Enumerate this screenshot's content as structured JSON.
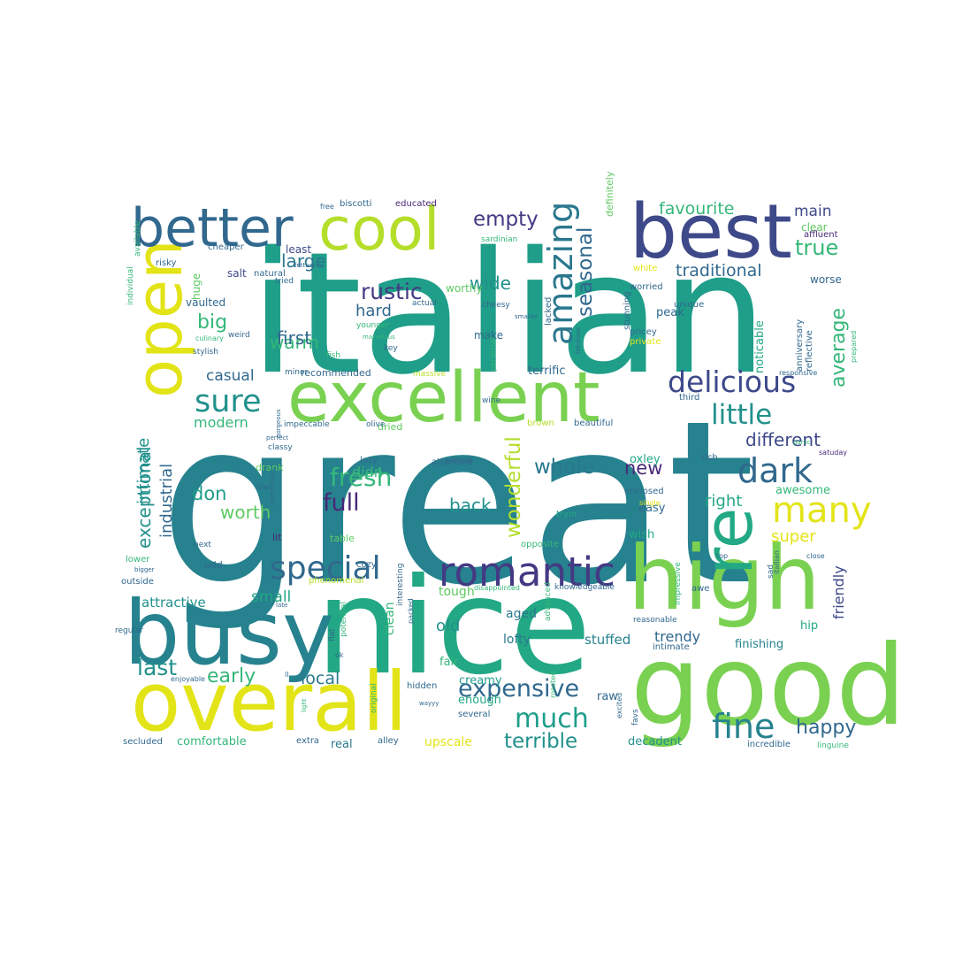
{
  "wordcloud": {
    "palette": {
      "yellow": "#e3e418",
      "lime": "#b5de2b",
      "lightgreen": "#7ad151",
      "green": "#5ec962",
      "seagreen": "#35b779",
      "teal": "#22a884",
      "teal2": "#1f9e89",
      "cyan": "#21918c",
      "blueteal": "#26828e",
      "steel": "#2a788e",
      "blue": "#31688e",
      "indigo": "#3e4989",
      "purple": "#443983",
      "dark": "#482878",
      "darkest": "#440154"
    },
    "words": [
      {
        "text": "great",
        "color": "blueteal"
      },
      {
        "text": "italian",
        "color": "teal2"
      },
      {
        "text": "nice",
        "color": "teal"
      },
      {
        "text": "good",
        "color": "lightgreen"
      },
      {
        "text": "overall",
        "color": "yellow"
      },
      {
        "text": "best",
        "color": "indigo"
      },
      {
        "text": "excellent",
        "color": "lightgreen"
      },
      {
        "text": "high",
        "color": "lightgreen"
      },
      {
        "text": "busy",
        "color": "blueteal"
      },
      {
        "text": "open",
        "color": "yellow"
      },
      {
        "text": "cool",
        "color": "lime"
      },
      {
        "text": "better",
        "color": "blue"
      },
      {
        "text": "romantic",
        "color": "purple"
      },
      {
        "text": "special",
        "color": "blue"
      },
      {
        "text": "re",
        "color": "teal"
      },
      {
        "text": "delicious",
        "color": "indigo"
      },
      {
        "text": "amazing",
        "color": "steel"
      },
      {
        "text": "expensive",
        "color": "blue"
      },
      {
        "text": "fine",
        "color": "blueteal"
      },
      {
        "text": "much",
        "color": "teal2"
      },
      {
        "text": "many",
        "color": "yellow"
      },
      {
        "text": "dark",
        "color": "blue"
      },
      {
        "text": "little",
        "color": "cyan"
      },
      {
        "text": "sure",
        "color": "cyan"
      },
      {
        "text": "fresh",
        "color": "seagreen"
      },
      {
        "text": "empty",
        "color": "purple"
      },
      {
        "text": "rustic",
        "color": "purple"
      },
      {
        "text": "full",
        "color": "dark"
      },
      {
        "text": "happy",
        "color": "blue"
      },
      {
        "text": "last",
        "color": "cyan"
      },
      {
        "text": "early",
        "color": "seagreen"
      },
      {
        "text": "terrible",
        "color": "cyan"
      },
      {
        "text": "whole",
        "color": "steel"
      },
      {
        "text": "different",
        "color": "indigo"
      },
      {
        "text": "wonderful",
        "color": "lime"
      },
      {
        "text": "seasonal",
        "color": "blue"
      },
      {
        "text": "favourite",
        "color": "seagreen"
      },
      {
        "text": "traditional",
        "color": "blue"
      },
      {
        "text": "true",
        "color": "seagreen"
      },
      {
        "text": "main",
        "color": "indigo"
      },
      {
        "text": "big",
        "color": "seagreen"
      },
      {
        "text": "worth",
        "color": "green"
      },
      {
        "text": "don",
        "color": "teal2"
      },
      {
        "text": "warm",
        "color": "seagreen"
      },
      {
        "text": "first",
        "color": "blue"
      },
      {
        "text": "large",
        "color": "steel"
      },
      {
        "text": "wide",
        "color": "cyan"
      },
      {
        "text": "hard",
        "color": "blue"
      },
      {
        "text": "new",
        "color": "dark"
      },
      {
        "text": "back",
        "color": "cyan"
      },
      {
        "text": "didn",
        "color": "seagreen"
      },
      {
        "text": "right",
        "color": "teal"
      },
      {
        "text": "super",
        "color": "yellow"
      },
      {
        "text": "average",
        "color": "seagreen"
      },
      {
        "text": "exceptional",
        "color": "cyan"
      },
      {
        "text": "industrial",
        "color": "blue"
      },
      {
        "text": "intimate",
        "color": "cyan"
      },
      {
        "text": "casual",
        "color": "blue"
      },
      {
        "text": "modern",
        "color": "seagreen"
      },
      {
        "text": "local",
        "color": "steel"
      },
      {
        "text": "old",
        "color": "cyan"
      },
      {
        "text": "small",
        "color": "teal"
      },
      {
        "text": "attractive",
        "color": "cyan"
      },
      {
        "text": "trendy",
        "color": "blue"
      },
      {
        "text": "friendly",
        "color": "indigo"
      },
      {
        "text": "stuffed",
        "color": "blueteal"
      },
      {
        "text": "lofty",
        "color": "steel"
      },
      {
        "text": "aged",
        "color": "steel"
      },
      {
        "text": "clean",
        "color": "seagreen"
      },
      {
        "text": "tough",
        "color": "green"
      },
      {
        "text": "fair",
        "color": "seagreen"
      },
      {
        "text": "upscale",
        "color": "yellow"
      },
      {
        "text": "creamy",
        "color": "teal2"
      },
      {
        "text": "enough",
        "color": "teal"
      },
      {
        "text": "raw",
        "color": "blue"
      },
      {
        "text": "comfortable",
        "color": "seagreen"
      },
      {
        "text": "real",
        "color": "steel"
      },
      {
        "text": "decadent",
        "color": "cyan"
      },
      {
        "text": "finishing",
        "color": "blueteal"
      },
      {
        "text": "hip",
        "color": "teal"
      },
      {
        "text": "awesome",
        "color": "seagreen"
      },
      {
        "text": "oxley",
        "color": "teal"
      },
      {
        "text": "easy",
        "color": "blue"
      },
      {
        "text": "wish",
        "color": "teal"
      },
      {
        "text": "noticable",
        "color": "teal"
      },
      {
        "text": "peak",
        "color": "blue"
      },
      {
        "text": "terrific",
        "color": "blue"
      },
      {
        "text": "make",
        "color": "blue"
      },
      {
        "text": "worthy",
        "color": "green"
      },
      {
        "text": "least",
        "color": "indigo"
      },
      {
        "text": "salt",
        "color": "indigo"
      },
      {
        "text": "huge",
        "color": "green"
      },
      {
        "text": "vaulted",
        "color": "blue"
      },
      {
        "text": "recommended",
        "color": "blue"
      },
      {
        "text": "dried",
        "color": "green"
      },
      {
        "text": "drank",
        "color": "green"
      },
      {
        "text": "lit",
        "color": "dark"
      },
      {
        "text": "table",
        "color": "green"
      },
      {
        "text": "odd",
        "color": "blue"
      },
      {
        "text": "definitely",
        "color": "green"
      },
      {
        "text": "clear",
        "color": "green"
      },
      {
        "text": "worse",
        "color": "blue"
      },
      {
        "text": "anniversary",
        "color": "blue"
      },
      {
        "text": "reflective",
        "color": "blue"
      },
      {
        "text": "affluent",
        "color": "dark"
      },
      {
        "text": "worried",
        "color": "blue"
      },
      {
        "text": "unique",
        "color": "blue"
      },
      {
        "text": "pricey",
        "color": "blue"
      },
      {
        "text": "private",
        "color": "yellow"
      },
      {
        "text": "white",
        "color": "yellow"
      },
      {
        "text": "stunning",
        "color": "blue"
      },
      {
        "text": "lacked",
        "color": "blue"
      },
      {
        "text": "third",
        "color": "blue"
      },
      {
        "text": "brown",
        "color": "lime"
      },
      {
        "text": "beautiful",
        "color": "blue"
      },
      {
        "text": "attentive",
        "color": "blue"
      },
      {
        "text": "rich",
        "color": "blue"
      },
      {
        "text": "enclosed",
        "color": "blue"
      },
      {
        "text": "single",
        "color": "yellow"
      },
      {
        "text": "tryin",
        "color": "teal"
      },
      {
        "text": "opposite",
        "color": "seagreen"
      },
      {
        "text": "young",
        "color": "blue"
      },
      {
        "text": "lazy",
        "color": "blue"
      },
      {
        "text": "cozy",
        "color": "blue"
      },
      {
        "text": "interesting",
        "color": "blue"
      },
      {
        "text": "disappointed",
        "color": "seagreen"
      },
      {
        "text": "knowledgeable",
        "color": "blue"
      },
      {
        "text": "impressive",
        "color": "seagreen"
      },
      {
        "text": "advanced",
        "color": "seagreen"
      },
      {
        "text": "reasonable",
        "color": "blue"
      },
      {
        "text": "intimate",
        "color": "blue"
      },
      {
        "text": "awe",
        "color": "blue"
      },
      {
        "text": "sad",
        "color": "blue"
      },
      {
        "text": "top",
        "color": "blue"
      },
      {
        "text": "close",
        "color": "blue"
      },
      {
        "text": "itallian",
        "color": "blue"
      },
      {
        "text": "potential",
        "color": "seagreen"
      },
      {
        "text": "flat",
        "color": "blue"
      },
      {
        "text": "ok",
        "color": "blue"
      },
      {
        "text": "original",
        "color": "seagreen"
      },
      {
        "text": "hidden",
        "color": "blue"
      },
      {
        "text": "several",
        "color": "blue"
      },
      {
        "text": "alley",
        "color": "blue"
      },
      {
        "text": "packed",
        "color": "blue"
      },
      {
        "text": "roasted",
        "color": "seagreen"
      },
      {
        "text": "excited",
        "color": "blue"
      },
      {
        "text": "favs",
        "color": "blue"
      },
      {
        "text": "incredible",
        "color": "blue"
      },
      {
        "text": "linguine",
        "color": "seagreen"
      },
      {
        "text": "extra",
        "color": "blue"
      },
      {
        "text": "secluded",
        "color": "blue"
      },
      {
        "text": "light",
        "color": "seagreen"
      },
      {
        "text": "wayyy",
        "color": "blue"
      },
      {
        "text": "ll",
        "color": "blue"
      },
      {
        "text": "enjoyable",
        "color": "blue"
      },
      {
        "text": "late",
        "color": "blue"
      },
      {
        "text": "phenomenal",
        "color": "lime"
      },
      {
        "text": "outside",
        "color": "blue"
      },
      {
        "text": "lower",
        "color": "seagreen"
      },
      {
        "text": "bigger",
        "color": "blue"
      },
      {
        "text": "next",
        "color": "blue"
      },
      {
        "text": "regular",
        "color": "blue"
      },
      {
        "text": "low",
        "color": "blue"
      },
      {
        "text": "pretentious",
        "color": "blue"
      },
      {
        "text": "perfect",
        "color": "blue"
      },
      {
        "text": "classy",
        "color": "blue"
      },
      {
        "text": "impeccable",
        "color": "blue"
      },
      {
        "text": "olive",
        "color": "blue"
      },
      {
        "text": "gorgeous",
        "color": "blue"
      },
      {
        "text": "minor",
        "color": "blue"
      },
      {
        "text": "fish",
        "color": "seagreen"
      },
      {
        "text": "massive",
        "color": "lime"
      },
      {
        "text": "personal",
        "color": "seagreen"
      },
      {
        "text": "wine",
        "color": "blue"
      },
      {
        "text": "culinary",
        "color": "seagreen"
      },
      {
        "text": "stylish",
        "color": "blue"
      },
      {
        "text": "younger",
        "color": "seagreen"
      },
      {
        "text": "marvelous",
        "color": "seagreen"
      },
      {
        "text": "key",
        "color": "blue"
      },
      {
        "text": "weird",
        "color": "blue"
      },
      {
        "text": "actual",
        "color": "blue"
      },
      {
        "text": "cheesy",
        "color": "blue"
      },
      {
        "text": "smaller",
        "color": "blue"
      },
      {
        "text": "fabulous",
        "color": "blue"
      },
      {
        "text": "natural",
        "color": "blue"
      },
      {
        "text": "tried",
        "color": "blue"
      },
      {
        "text": "fettuccini",
        "color": "blue"
      },
      {
        "text": "cheaper",
        "color": "blue"
      },
      {
        "text": "risky",
        "color": "blue"
      },
      {
        "text": "available",
        "color": "seagreen"
      },
      {
        "text": "individual",
        "color": "seagreen"
      },
      {
        "text": "free",
        "color": "blue"
      },
      {
        "text": "biscotti",
        "color": "blue"
      },
      {
        "text": "educated",
        "color": "dark"
      },
      {
        "text": "sardinian",
        "color": "seagreen"
      },
      {
        "text": "responsive",
        "color": "blue"
      },
      {
        "text": "satuday",
        "color": "dark"
      },
      {
        "text": "garlic",
        "color": "seagreen"
      },
      {
        "text": "prepared",
        "color": "seagreen"
      }
    ]
  }
}
